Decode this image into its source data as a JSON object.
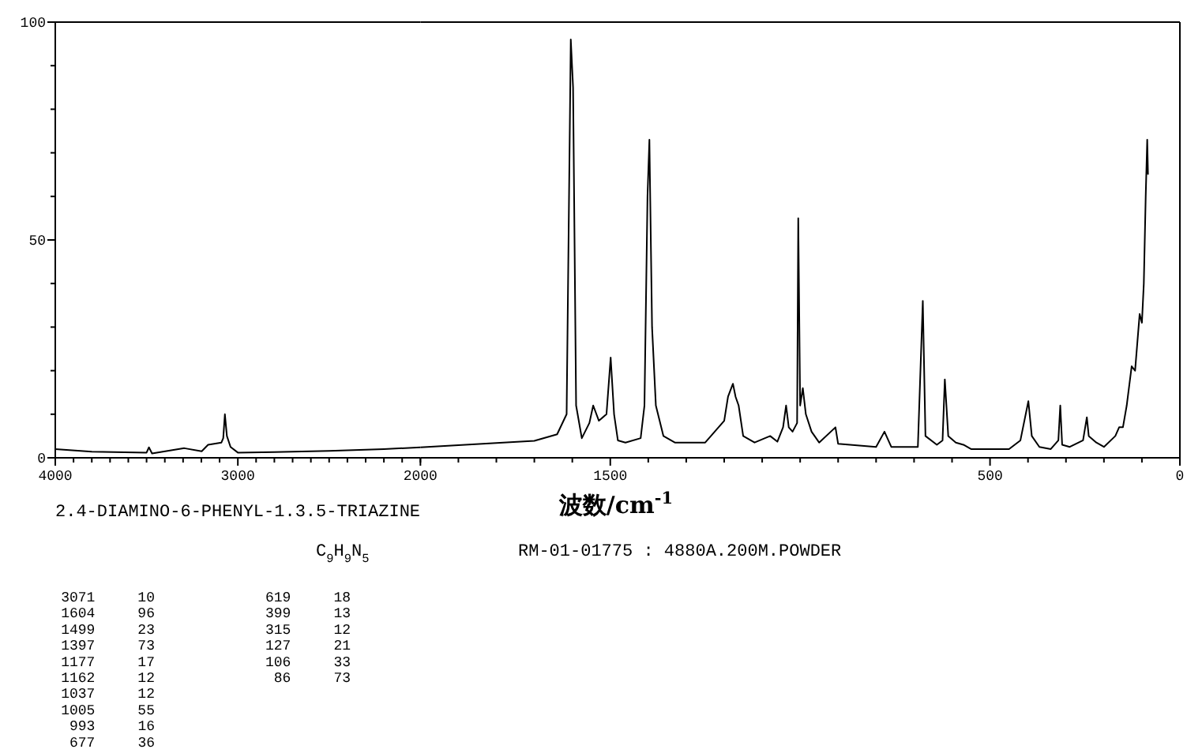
{
  "chart_data": [
    {
      "type": "line",
      "x": [
        4000,
        3800,
        3500,
        3487,
        3470,
        3293,
        3198,
        3163,
        3090,
        3080,
        3071,
        3060,
        3040,
        3000,
        2800,
        2500,
        2200,
        2000
      ],
      "series": [
        {
          "color": "#000000",
          "values": [
            2.0,
            1.4,
            1.2,
            2.4,
            1.0,
            2.2,
            1.5,
            3.0,
            3.5,
            4.5,
            10,
            5,
            2.5,
            1.2,
            1.3,
            1.6,
            2.0,
            2.4
          ]
        }
      ],
      "xlim": [
        4000,
        2000
      ],
      "xticks": [
        4000,
        {
          "value": 3900,
          "label": null
        },
        {
          "value": 3800,
          "label": null
        },
        {
          "value": 3700,
          "label": null
        },
        {
          "value": 3600,
          "label": null
        },
        {
          "value": 3500,
          "label": null
        },
        {
          "value": 3400,
          "label": null
        },
        {
          "value": 3300,
          "label": null
        },
        {
          "value": 3200,
          "label": null
        },
        {
          "value": 3100,
          "label": null
        },
        3000,
        {
          "value": 2900,
          "label": null
        },
        {
          "value": 2800,
          "label": null
        },
        {
          "value": 2700,
          "label": null
        },
        {
          "value": 2600,
          "label": null
        },
        {
          "value": 2500,
          "label": null
        },
        {
          "value": 2400,
          "label": null
        },
        {
          "value": 2300,
          "label": null
        },
        {
          "value": 2200,
          "label": null
        },
        {
          "value": 2100,
          "label": null
        },
        2000
      ],
      "ylim": [
        0,
        100
      ],
      "yticks": [
        0,
        {
          "value": 10,
          "label": null
        },
        {
          "value": 20,
          "label": null
        },
        {
          "value": 30,
          "label": null
        },
        {
          "value": 40,
          "label": null
        },
        50,
        {
          "value": 60,
          "label": null
        },
        {
          "value": 70,
          "label": null
        },
        {
          "value": 80,
          "label": null
        },
        {
          "value": 90,
          "label": null
        },
        100
      ],
      "annotations": [
        "2.4-DIAMINO-6-PHENYL-1.3.5-TRIAZINE",
        "C$_{9}$H$_{9}$N$_{5}$",
        "RM-01-01775 : 4880A.200M.POWDER",
        "3071     10",
        "1604     96",
        "1499     23",
        "1397     73",
        "1177     17",
        "1162     12",
        "1037     12",
        "1005     55",
        "993     16",
        "677     36",
        "619     18",
        "399     13",
        "315     12",
        "127     21",
        "106     33",
        "86     73"
      ]
    },
    {
      "type": "line",
      "x": [
        2000,
        1700,
        1640,
        1615,
        1604,
        1598,
        1590,
        1575,
        1555,
        1545,
        1530,
        1510,
        1499,
        1490,
        1480,
        1460,
        1420,
        1410,
        1402,
        1397,
        1390,
        1380,
        1360,
        1330,
        1300,
        1250,
        1200,
        1190,
        1177,
        1170,
        1162,
        1150,
        1120,
        1079,
        1060,
        1045,
        1037,
        1030,
        1020,
        1008,
        1005,
        1000,
        993,
        985,
        970,
        950,
        907,
        900,
        800,
        778,
        760,
        690,
        677,
        670,
        640,
        625,
        619,
        610,
        590,
        570,
        550,
        500,
        450,
        420,
        399,
        390,
        370,
        340,
        320,
        315,
        310,
        290,
        255,
        245,
        240,
        220,
        200,
        170,
        160,
        150,
        140,
        127,
        118,
        106,
        100,
        95,
        90,
        86,
        84
      ],
      "series": [
        {
          "color": "#000000",
          "values": [
            2.4,
            3.9,
            5.4,
            10,
            96,
            85,
            12,
            4.5,
            8,
            12,
            8.5,
            10,
            23,
            10,
            4,
            3.5,
            4.5,
            12,
            60,
            73,
            30,
            12,
            5,
            3.5,
            3.5,
            3.5,
            8.5,
            14,
            17,
            14,
            12,
            5,
            3.5,
            5,
            3.7,
            7,
            12,
            7,
            6,
            8,
            55,
            12,
            16,
            10,
            6,
            3.5,
            7,
            3.2,
            2.5,
            6,
            2.5,
            2.5,
            36,
            5,
            3,
            4,
            18,
            5,
            3.5,
            3,
            2,
            2,
            2,
            4,
            13,
            5,
            2.5,
            2,
            4,
            12,
            3,
            2.5,
            4,
            9.3,
            5,
            3.5,
            2.5,
            5,
            7,
            7,
            12,
            21,
            20,
            33,
            31,
            40,
            60,
            73,
            65
          ]
        }
      ],
      "xlim": [
        2000,
        0
      ],
      "xticks": [
        {
          "value": 2000,
          "label": null
        },
        {
          "value": 1900,
          "label": null
        },
        {
          "value": 1800,
          "label": null
        },
        {
          "value": 1700,
          "label": null
        },
        {
          "value": 1600,
          "label": null
        },
        1500,
        {
          "value": 1400,
          "label": null
        },
        {
          "value": 1300,
          "label": null
        },
        {
          "value": 1200,
          "label": null
        },
        {
          "value": 1100,
          "label": null
        },
        {
          "value": 1000,
          "label": null
        },
        {
          "value": 900,
          "label": null
        },
        {
          "value": 800,
          "label": null
        },
        {
          "value": 700,
          "label": null
        },
        {
          "value": 600,
          "label": null
        },
        500,
        {
          "value": 400,
          "label": null
        },
        {
          "value": 300,
          "label": null
        },
        {
          "value": 200,
          "label": null
        },
        {
          "value": 100,
          "label": null
        },
        0
      ],
      "ylim": [
        0,
        100
      ],
      "tick_labels": "x",
      "xlabel": "波数/cm$^{-1}$"
    }
  ]
}
